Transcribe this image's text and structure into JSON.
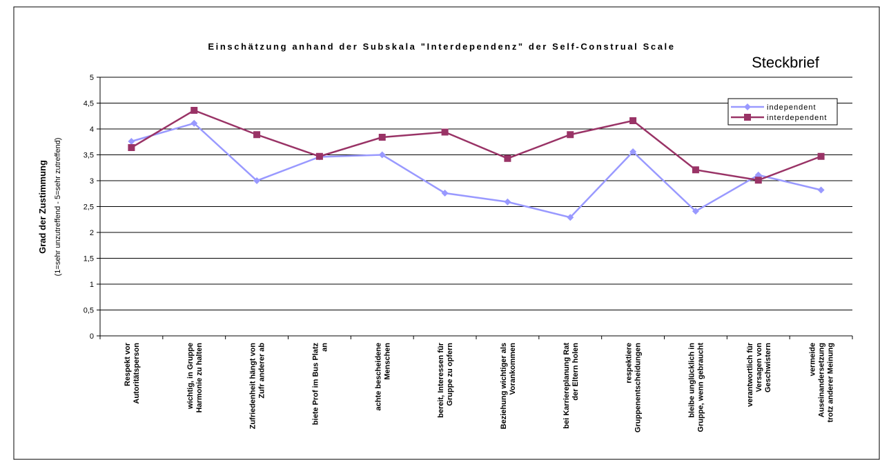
{
  "chart_data": {
    "type": "line",
    "title": "Einschätzung anhand der Subskala \"Interdependenz\" der Self-Construal Scale",
    "subtitle": "Steckbrief",
    "y_label": "Grad der Zustimmung",
    "y_sublabel": "(1=sehr unzutreffend - 5=sehr zutreffend)",
    "categories": [
      "Respekt vor Autoritätsperson",
      "wichtig, in Gruppe Harmonie zu halten",
      "Zufriedenheit hängt von Zufr anderer ab",
      "biete Prof im Bus Platz an",
      "achte bescheidene Menschen",
      "bereit, Interessen für Gruppe zu opfern",
      "Beziehung wichtiger als Vorankommen",
      "bei Karriereplanung Rat der Eltern holen",
      "respektiere Gruppenentscheidungen",
      "bleibe unglücklich in Gruppe, wenn gebraucht",
      "verantwortlich für Versagen von Geschwistern",
      "vermeide Auseinandersetzung trotz anderer Meinung"
    ],
    "series": [
      {
        "name": "independent",
        "color": "#9999ff",
        "marker": "diamond",
        "values": [
          3.76,
          4.11,
          3.0,
          3.46,
          3.5,
          2.76,
          2.59,
          2.29,
          3.56,
          2.41,
          3.11,
          2.82
        ]
      },
      {
        "name": "interdependent",
        "color": "#993366",
        "marker": "square",
        "values": [
          3.64,
          4.36,
          3.89,
          3.47,
          3.84,
          3.94,
          3.43,
          3.89,
          4.16,
          3.21,
          3.01,
          3.47
        ]
      }
    ],
    "ylim": [
      0,
      5
    ],
    "yticks": [
      0,
      {
        "value": 0.5,
        "label": "0,5"
      },
      1,
      {
        "value": 1.5,
        "label": "1,5"
      },
      2,
      {
        "value": 2.5,
        "label": "2,5"
      },
      3,
      {
        "value": 3.5,
        "label": "3,5"
      },
      4,
      {
        "value": 4.5,
        "label": "4,5"
      },
      5
    ],
    "grid": true,
    "legend": "top-right"
  }
}
